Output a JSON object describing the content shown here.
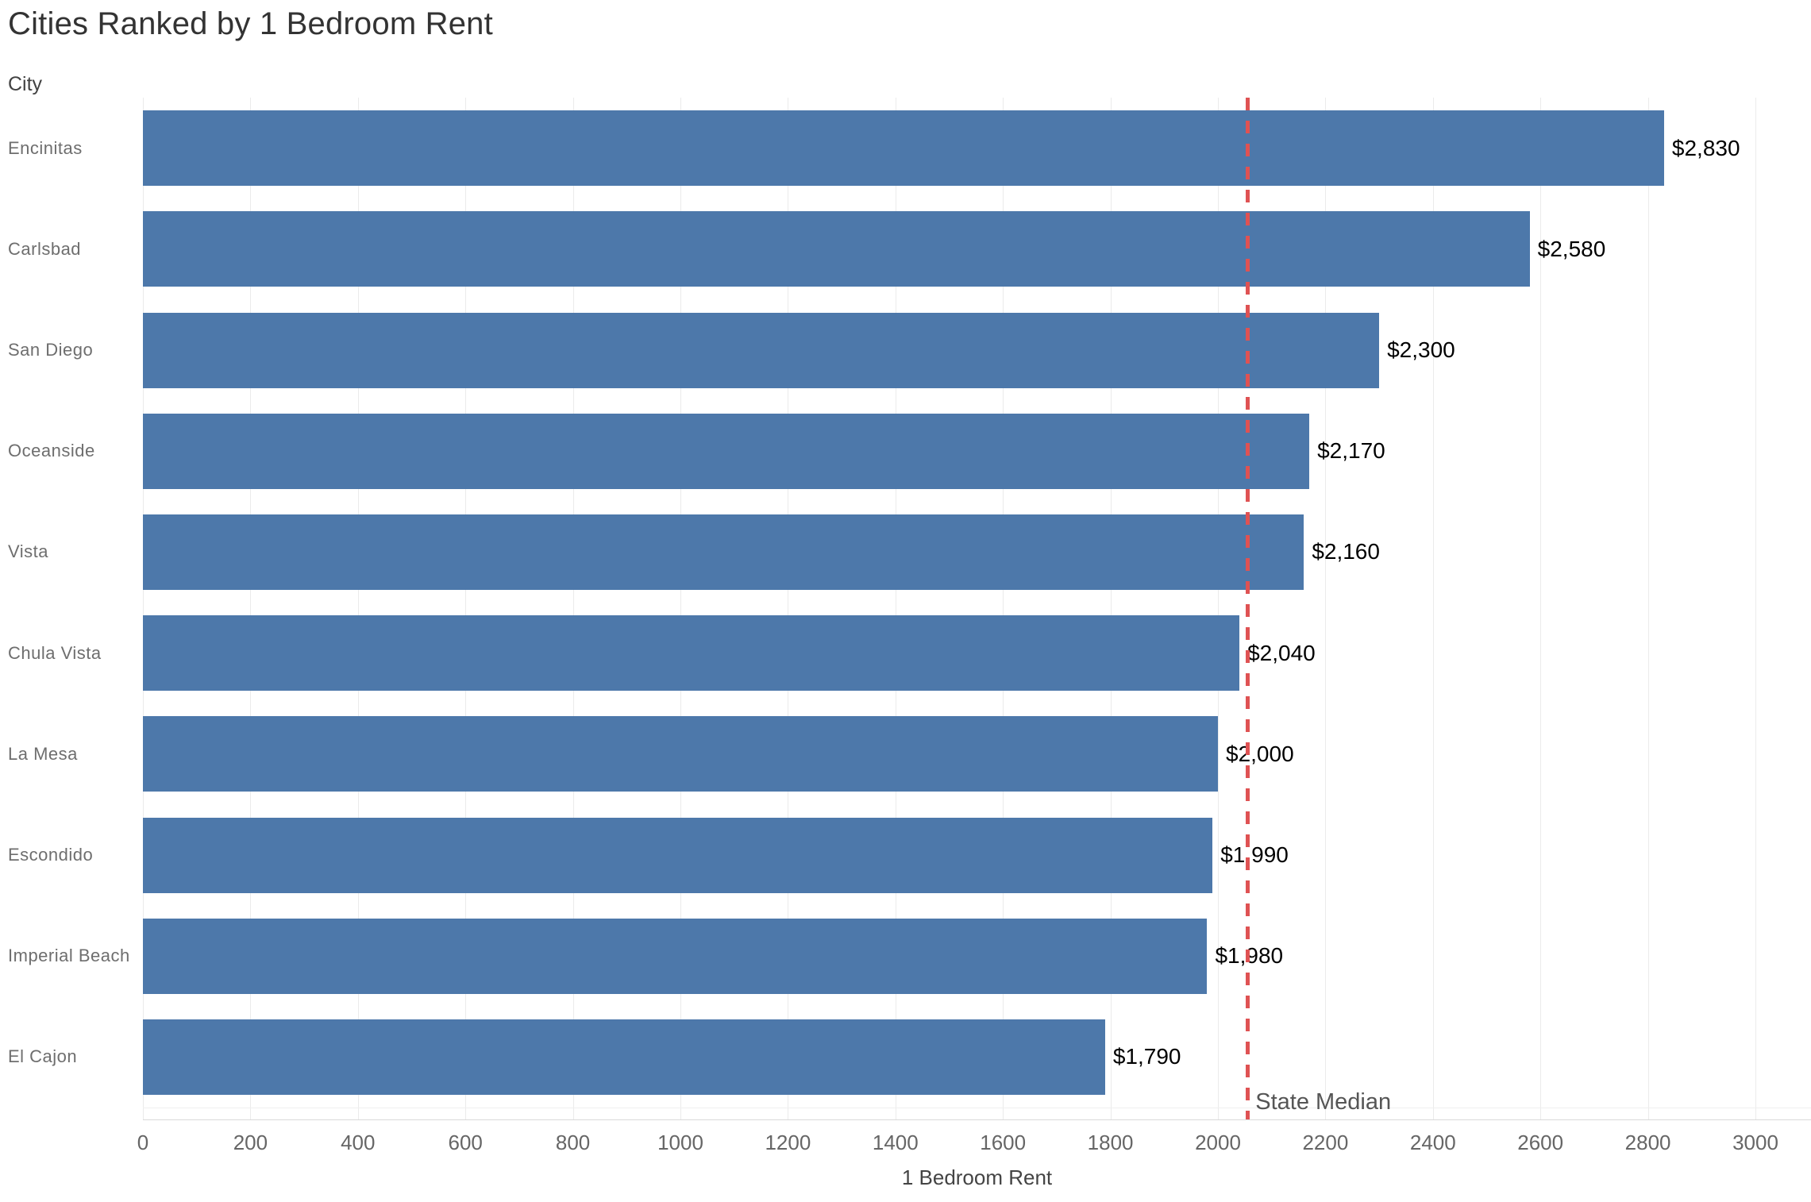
{
  "title": "Cities Ranked by 1 Bedroom Rent",
  "y_axis_header": "City",
  "x_axis_title": "1 Bedroom Rent",
  "chart_data": {
    "type": "bar",
    "orientation": "horizontal",
    "title": "Cities Ranked by 1 Bedroom Rent",
    "xlabel": "1 Bedroom Rent",
    "ylabel": "City",
    "categories": [
      "Encinitas",
      "Carlsbad",
      "San Diego",
      "Oceanside",
      "Vista",
      "Chula Vista",
      "La Mesa",
      "Escondido",
      "Imperial Beach",
      "El Cajon"
    ],
    "values": [
      2830,
      2580,
      2300,
      2170,
      2160,
      2040,
      2000,
      1990,
      1980,
      1790
    ],
    "value_labels": [
      "$2,830",
      "$2,580",
      "$2,300",
      "$2,170",
      "$2,160",
      "$2,040",
      "$2,000",
      "$1,990",
      "$1,980",
      "$1,790"
    ],
    "xlim": [
      0,
      3000
    ],
    "x_ticks": [
      0,
      200,
      400,
      600,
      800,
      1000,
      1200,
      1400,
      1600,
      1800,
      2000,
      2200,
      2400,
      2600,
      2800,
      3000
    ],
    "grid": "vertical-only",
    "reference_line": {
      "label": "State Median",
      "value": 2055,
      "style": "dashed"
    },
    "colors": {
      "bar": "#4d78aa",
      "reference_line": "#df5253",
      "gridline": "#ebebeb",
      "axis_line": "#d9d9d9",
      "title_text": "#333333",
      "category_text": "#6e6e6e",
      "value_text": "#000000",
      "tick_text": "#666666"
    }
  }
}
